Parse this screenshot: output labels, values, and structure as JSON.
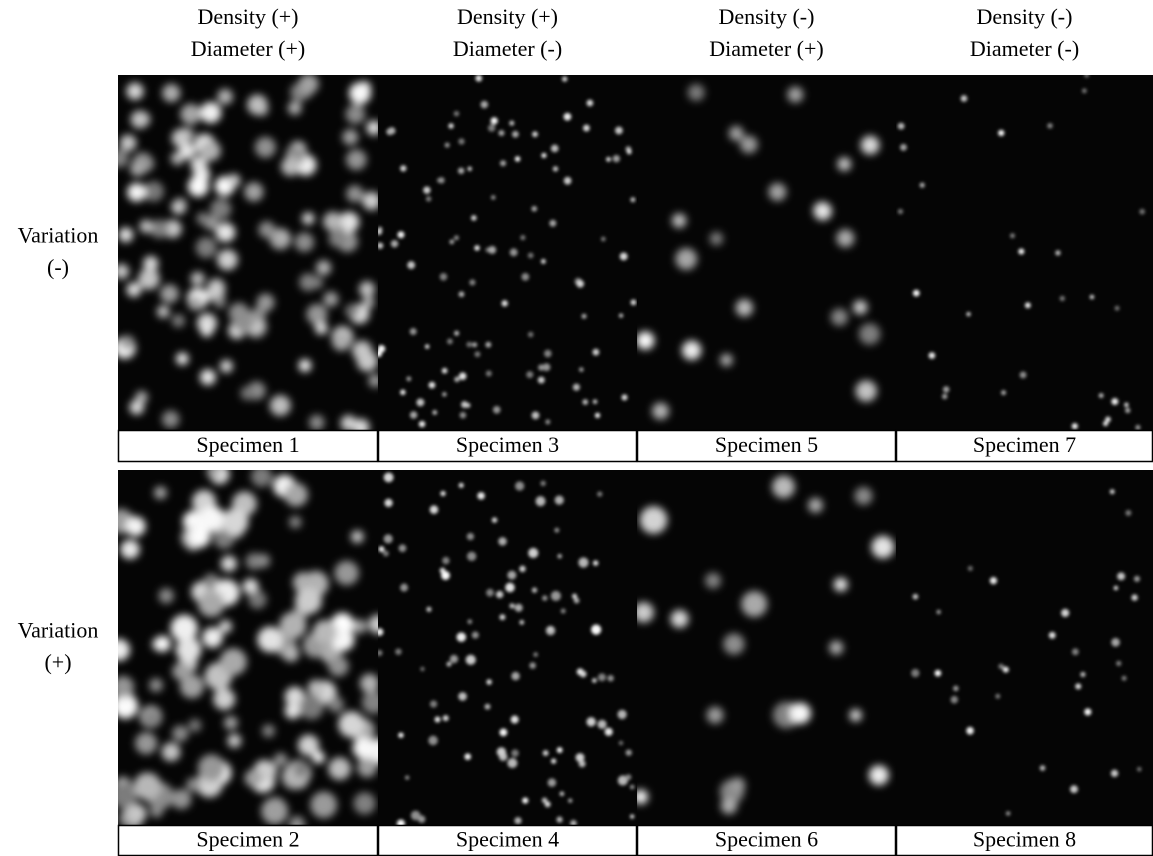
{
  "columns": [
    {
      "line1": "Density (+)",
      "line2": "Diameter (+)"
    },
    {
      "line1": "Density (+)",
      "line2": "Diameter (-)"
    },
    {
      "line1": "Density (-)",
      "line2": "Diameter (+)"
    },
    {
      "line1": "Density (-)",
      "line2": "Diameter (-)"
    }
  ],
  "rows": [
    {
      "label1": "Variation",
      "label2": "(-)",
      "specimens": [
        "Specimen 1",
        "Specimen 3",
        "Specimen 5",
        "Specimen 7"
      ]
    },
    {
      "label1": "Variation",
      "label2": "(+)",
      "specimens": [
        "Specimen 2",
        "Specimen 4",
        "Specimen 6",
        "Specimen 8"
      ]
    }
  ]
}
